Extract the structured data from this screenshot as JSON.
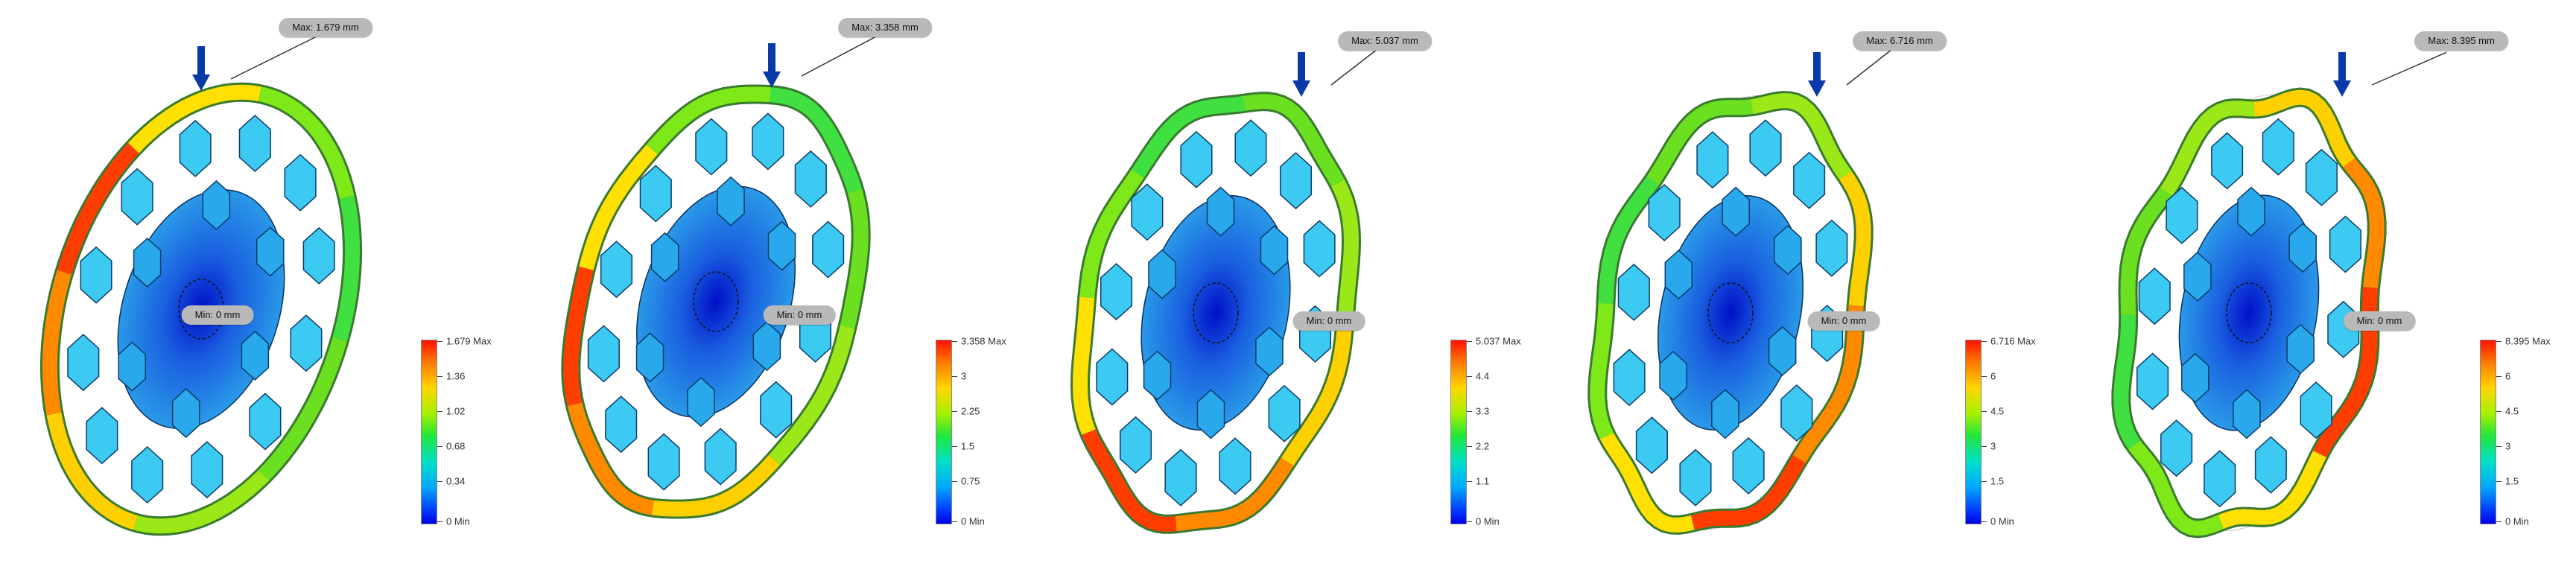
{
  "panels": [
    {
      "max_label": "Max: 1.679 mm",
      "min_label": "Min: 0 mm",
      "legend": {
        "top_label": "1.679 Max",
        "ticks": [
          "1.36",
          "1.02",
          "0.68",
          "0.34"
        ],
        "bottom_label": "0 Min"
      }
    },
    {
      "max_label": "Max: 3.358 mm",
      "min_label": "Min: 0 mm",
      "legend": {
        "top_label": "3.358 Max",
        "ticks": [
          "3",
          "2.25",
          "1.5",
          "0.75"
        ],
        "bottom_label": "0 Min"
      }
    },
    {
      "max_label": "Max: 5.037 mm",
      "min_label": "Min: 0 mm",
      "legend": {
        "top_label": "5.037 Max",
        "ticks": [
          "4.4",
          "3.3",
          "2.2",
          "1.1"
        ],
        "bottom_label": "0 Min"
      }
    },
    {
      "max_label": "Max: 6.716 mm",
      "min_label": "Min: 0 mm",
      "legend": {
        "top_label": "6.716 Max",
        "ticks": [
          "6",
          "4.5",
          "3",
          "1.5"
        ],
        "bottom_label": "0 Min"
      }
    },
    {
      "max_label": "Max: 8.395 mm",
      "min_label": "Min: 0 mm",
      "legend": {
        "top_label": "8.395 Max",
        "ticks": [
          "6",
          "4.5",
          "3",
          "1.5"
        ],
        "bottom_label": "0 Min"
      }
    }
  ],
  "colors": {
    "max": "#ff1200",
    "mid": "#22e63a",
    "min": "#0000e8",
    "load_arrow": "#0a3aa8",
    "cell": "#35c4f0"
  },
  "icons": {
    "load": "down-arrow-icon"
  }
}
